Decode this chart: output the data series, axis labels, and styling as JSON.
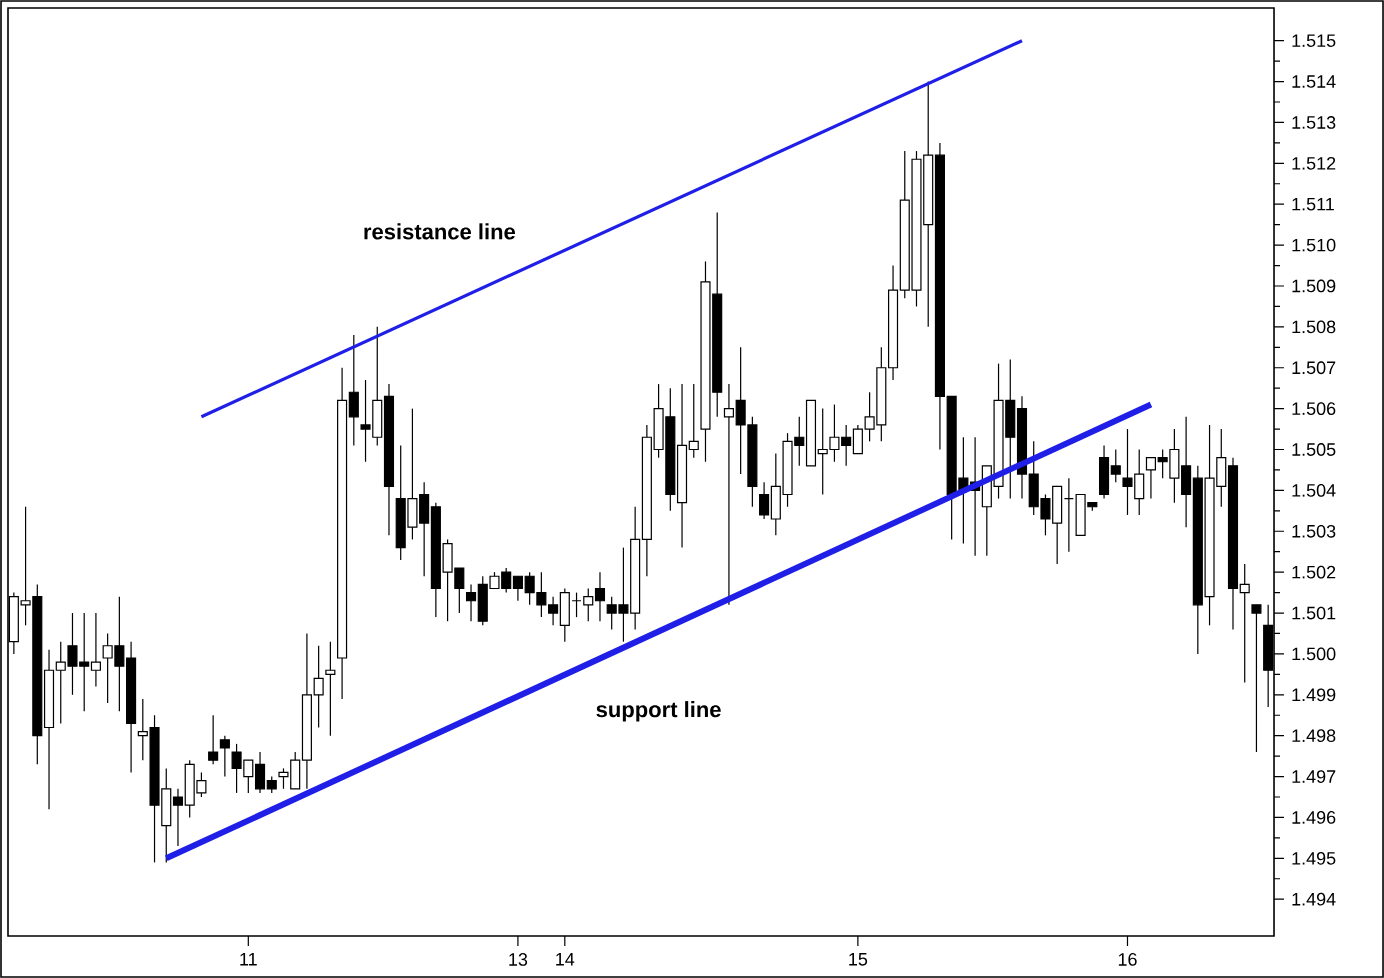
{
  "chart_data": {
    "type": "candlestick",
    "categories": [
      null,
      null,
      null,
      null,
      null,
      null,
      null,
      null,
      null,
      null,
      null,
      null,
      null,
      null,
      null,
      null,
      null,
      null,
      null,
      null,
      "11",
      null,
      null,
      null,
      null,
      null,
      null,
      null,
      null,
      null,
      null,
      null,
      null,
      null,
      null,
      null,
      null,
      null,
      null,
      null,
      null,
      null,
      null,
      "13",
      null,
      null,
      null,
      "14",
      null,
      null,
      null,
      null,
      null,
      null,
      null,
      null,
      null,
      null,
      null,
      null,
      null,
      null,
      null,
      null,
      null,
      null,
      null,
      null,
      null,
      null,
      null,
      null,
      "15",
      null,
      null,
      null,
      null,
      null,
      null,
      null,
      null,
      null,
      null,
      null,
      null,
      null,
      null,
      null,
      null,
      null,
      null,
      null,
      null,
      null,
      null,
      "16",
      null,
      null,
      null,
      null,
      null,
      null,
      null,
      null,
      null,
      null,
      null,
      null
    ],
    "ohlc": [
      [
        1.5003,
        1.5015,
        1.5,
        1.5014
      ],
      [
        1.5012,
        1.5036,
        1.5007,
        1.5013
      ],
      [
        1.5014,
        1.5017,
        1.4973,
        1.498
      ],
      [
        1.4982,
        1.5001,
        1.4962,
        1.4996
      ],
      [
        1.4996,
        1.5003,
        1.4983,
        1.4998
      ],
      [
        1.5002,
        1.501,
        1.499,
        1.4997
      ],
      [
        1.4998,
        1.501,
        1.4986,
        1.4997
      ],
      [
        1.4996,
        1.501,
        1.4992,
        1.4998
      ],
      [
        1.4999,
        1.5005,
        1.4988,
        1.5002
      ],
      [
        1.5002,
        1.5014,
        1.4986,
        1.4997
      ],
      [
        1.4999,
        1.5003,
        1.4971,
        1.4983
      ],
      [
        1.498,
        1.4989,
        1.4974,
        1.4981
      ],
      [
        1.4982,
        1.4985,
        1.4949,
        1.4963
      ],
      [
        1.4958,
        1.4972,
        1.4949,
        1.4967
      ],
      [
        1.4965,
        1.4967,
        1.4953,
        1.4963
      ],
      [
        1.4963,
        1.4974,
        1.496,
        1.4973
      ],
      [
        1.4966,
        1.4971,
        1.4965,
        1.4969
      ],
      [
        1.4976,
        1.4985,
        1.4973,
        1.4974
      ],
      [
        1.4979,
        1.498,
        1.497,
        1.4977
      ],
      [
        1.4976,
        1.4978,
        1.4966,
        1.4972
      ],
      [
        1.497,
        1.4974,
        1.4966,
        1.4974
      ],
      [
        1.4973,
        1.4976,
        1.4966,
        1.4967
      ],
      [
        1.4969,
        1.497,
        1.4966,
        1.4967
      ],
      [
        1.497,
        1.4972,
        1.4967,
        1.4971
      ],
      [
        1.4967,
        1.4976,
        1.4967,
        1.4974
      ],
      [
        1.4974,
        1.5005,
        1.4967,
        1.499
      ],
      [
        1.499,
        1.5002,
        1.4982,
        1.4994
      ],
      [
        1.4995,
        1.5003,
        1.498,
        1.4996
      ],
      [
        1.4999,
        1.507,
        1.4989,
        1.5062
      ],
      [
        1.5064,
        1.5078,
        1.5051,
        1.5058
      ],
      [
        1.5056,
        1.5067,
        1.5047,
        1.5055
      ],
      [
        1.5053,
        1.508,
        1.5051,
        1.5062
      ],
      [
        1.5063,
        1.5066,
        1.5029,
        1.5041
      ],
      [
        1.5038,
        1.5051,
        1.5023,
        1.5026
      ],
      [
        1.5031,
        1.506,
        1.5028,
        1.5038
      ],
      [
        1.5039,
        1.5042,
        1.5019,
        1.5032
      ],
      [
        1.5036,
        1.5037,
        1.5009,
        1.5016
      ],
      [
        1.502,
        1.5028,
        1.5008,
        1.5027
      ],
      [
        1.5021,
        1.5021,
        1.501,
        1.5016
      ],
      [
        1.5015,
        1.5017,
        1.5008,
        1.5013
      ],
      [
        1.5017,
        1.5019,
        1.5007,
        1.5008
      ],
      [
        1.5016,
        1.502,
        1.5016,
        1.5019
      ],
      [
        1.502,
        1.5021,
        1.5015,
        1.5016
      ],
      [
        1.5019,
        1.5019,
        1.5013,
        1.5016
      ],
      [
        1.5019,
        1.502,
        1.5012,
        1.5015
      ],
      [
        1.5015,
        1.502,
        1.5009,
        1.5012
      ],
      [
        1.5012,
        1.5014,
        1.5007,
        1.501
      ],
      [
        1.5007,
        1.5016,
        1.5003,
        1.5015
      ],
      [
        1.5013,
        1.5015,
        1.5009,
        1.5013
      ],
      [
        1.5012,
        1.5016,
        1.5008,
        1.5014
      ],
      [
        1.5016,
        1.502,
        1.5008,
        1.5013
      ],
      [
        1.5012,
        1.5014,
        1.5006,
        1.501
      ],
      [
        1.5012,
        1.5026,
        1.5003,
        1.501
      ],
      [
        1.501,
        1.5036,
        1.5006,
        1.5028
      ],
      [
        1.5028,
        1.5056,
        1.5019,
        1.5053
      ],
      [
        1.505,
        1.5066,
        1.5048,
        1.506
      ],
      [
        1.5058,
        1.5065,
        1.5035,
        1.5039
      ],
      [
        1.5037,
        1.5066,
        1.5026,
        1.5051
      ],
      [
        1.505,
        1.5066,
        1.5048,
        1.5052
      ],
      [
        1.5055,
        1.5096,
        1.5047,
        1.5091
      ],
      [
        1.5088,
        1.5108,
        1.5058,
        1.5064
      ],
      [
        1.5058,
        1.5066,
        1.5012,
        1.506
      ],
      [
        1.5062,
        1.5075,
        1.5044,
        1.5056
      ],
      [
        1.5056,
        1.5058,
        1.5036,
        1.5041
      ],
      [
        1.5039,
        1.5042,
        1.5033,
        1.5034
      ],
      [
        1.5033,
        1.5049,
        1.5029,
        1.5041
      ],
      [
        1.5039,
        1.5054,
        1.5036,
        1.5052
      ],
      [
        1.5053,
        1.5058,
        1.5046,
        1.5051
      ],
      [
        1.5046,
        1.5062,
        1.5046,
        1.5062
      ],
      [
        1.5049,
        1.506,
        1.5039,
        1.505
      ],
      [
        1.505,
        1.5061,
        1.5047,
        1.5053
      ],
      [
        1.5053,
        1.5056,
        1.5046,
        1.5051
      ],
      [
        1.5049,
        1.5056,
        1.5049,
        1.5055
      ],
      [
        1.5055,
        1.5064,
        1.5052,
        1.5058
      ],
      [
        1.5056,
        1.5075,
        1.5052,
        1.507
      ],
      [
        1.507,
        1.5095,
        1.5067,
        1.5089
      ],
      [
        1.5089,
        1.5123,
        1.5087,
        1.5111
      ],
      [
        1.5089,
        1.5123,
        1.5085,
        1.5121
      ],
      [
        1.5105,
        1.514,
        1.508,
        1.5122
      ],
      [
        1.5122,
        1.5125,
        1.505,
        1.5063
      ],
      [
        1.5063,
        1.5063,
        1.5028,
        1.5039
      ],
      [
        1.5043,
        1.5053,
        1.5027,
        1.504
      ],
      [
        1.5042,
        1.5053,
        1.5024,
        1.504
      ],
      [
        1.5036,
        1.5046,
        1.5024,
        1.5046
      ],
      [
        1.5041,
        1.5071,
        1.5038,
        1.5062
      ],
      [
        1.5062,
        1.5072,
        1.5038,
        1.5053
      ],
      [
        1.506,
        1.5063,
        1.5038,
        1.5044
      ],
      [
        1.5044,
        1.5052,
        1.5034,
        1.5036
      ],
      [
        1.5038,
        1.5039,
        1.5029,
        1.5033
      ],
      [
        1.5032,
        1.5041,
        1.5022,
        1.5041
      ],
      [
        1.5038,
        1.5043,
        1.5025,
        1.5038
      ],
      [
        1.5029,
        1.5039,
        1.5029,
        1.5039
      ],
      [
        1.5037,
        1.5037,
        1.5035,
        1.5036
      ],
      [
        1.5048,
        1.5051,
        1.5038,
        1.5039
      ],
      [
        1.5046,
        1.505,
        1.5042,
        1.5044
      ],
      [
        1.5043,
        1.5055,
        1.5034,
        1.5041
      ],
      [
        1.5038,
        1.505,
        1.5034,
        1.5044
      ],
      [
        1.5045,
        1.5048,
        1.5038,
        1.5048
      ],
      [
        1.5048,
        1.505,
        1.5043,
        1.5047
      ],
      [
        1.5043,
        1.5055,
        1.5037,
        1.505
      ],
      [
        1.5046,
        1.5058,
        1.5031,
        1.5039
      ],
      [
        1.5043,
        1.5046,
        1.5,
        1.5012
      ],
      [
        1.5014,
        1.5056,
        1.5007,
        1.5043
      ],
      [
        1.5041,
        1.5055,
        1.5036,
        1.5048
      ],
      [
        1.5046,
        1.5048,
        1.5006,
        1.5016
      ],
      [
        1.5015,
        1.5022,
        1.4993,
        1.5017
      ],
      [
        1.5012,
        1.5012,
        1.4976,
        1.501
      ],
      [
        1.5007,
        1.5012,
        1.4987,
        1.4996
      ]
    ],
    "series": [
      {
        "type": "line",
        "name": "resistance line",
        "color": "#1f1fe8",
        "values": [
          null,
          null,
          null,
          null,
          null,
          null,
          null,
          null,
          null,
          null,
          null,
          null,
          null,
          null,
          null,
          null,
          1.5058,
          null,
          null,
          null,
          null,
          null,
          null,
          null,
          null,
          null,
          null,
          null,
          null,
          null,
          null,
          null,
          null,
          null,
          null,
          null,
          null,
          null,
          null,
          null,
          null,
          null,
          null,
          null,
          null,
          null,
          null,
          null,
          null,
          null,
          null,
          null,
          null,
          null,
          null,
          null,
          null,
          null,
          null,
          null,
          null,
          null,
          null,
          null,
          null,
          null,
          null,
          null,
          null,
          null,
          null,
          null,
          null,
          null,
          null,
          null,
          null,
          null,
          null,
          null,
          null,
          null,
          null,
          null,
          null,
          null,
          1.515,
          null,
          null,
          null,
          null,
          null,
          null,
          null,
          null,
          null,
          null,
          null,
          null,
          null,
          null,
          null,
          null,
          null,
          null,
          null,
          null,
          null
        ]
      },
      {
        "type": "line",
        "name": "support line",
        "color": "#1f1fe8",
        "values": [
          null,
          null,
          null,
          null,
          null,
          null,
          null,
          null,
          null,
          null,
          null,
          null,
          null,
          1.495,
          null,
          null,
          null,
          null,
          null,
          null,
          null,
          null,
          null,
          null,
          null,
          null,
          null,
          null,
          null,
          null,
          null,
          null,
          null,
          null,
          null,
          null,
          null,
          null,
          null,
          null,
          null,
          null,
          null,
          null,
          null,
          null,
          null,
          null,
          null,
          null,
          null,
          null,
          null,
          null,
          null,
          null,
          null,
          null,
          null,
          null,
          null,
          null,
          null,
          null,
          null,
          null,
          null,
          null,
          null,
          null,
          null,
          null,
          null,
          null,
          null,
          null,
          null,
          null,
          null,
          null,
          null,
          null,
          null,
          null,
          null,
          null,
          null,
          null,
          null,
          null,
          null,
          null,
          null,
          null,
          null,
          null,
          null,
          1.5061,
          null,
          null,
          null,
          null,
          null,
          null,
          null,
          null,
          null,
          null
        ]
      }
    ],
    "ylim": [
      1.4931,
      1.5158
    ],
    "yticks": [
      1.494,
      1.495,
      1.496,
      1.497,
      1.498,
      1.499,
      {
        "value": 1.5,
        "label": "1.500"
      },
      1.501,
      1.502,
      1.503,
      1.504,
      1.505,
      1.506,
      1.507,
      1.508,
      1.509,
      {
        "value": 1.51,
        "label": "1.510"
      },
      1.511,
      1.512,
      1.513,
      1.514,
      1.515
    ]
  }
}
